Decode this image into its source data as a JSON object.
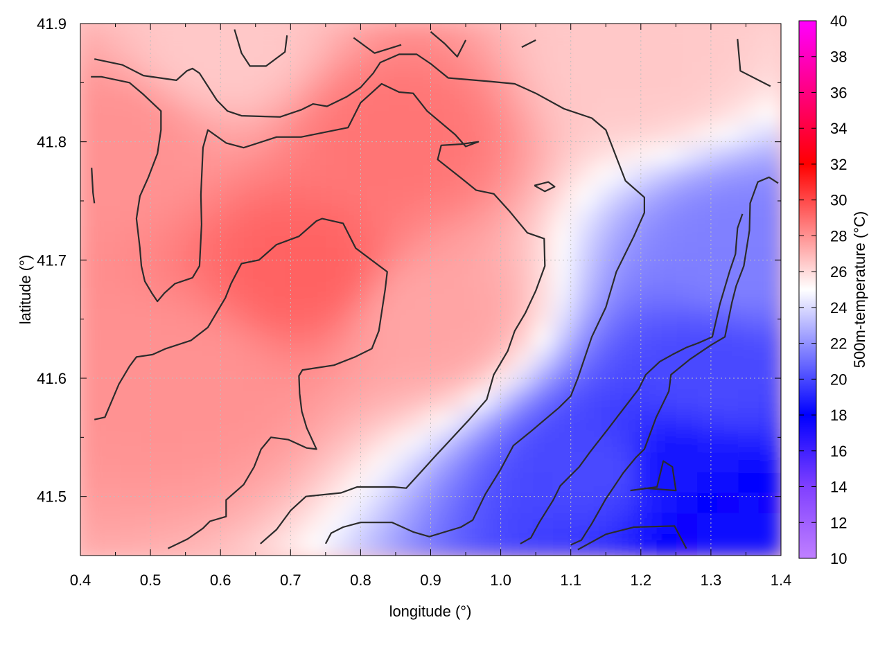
{
  "chart_data": {
    "type": "heatmap",
    "title": "",
    "xlabel": "longitude (°)",
    "ylabel": "latitude (°)",
    "colorbar_label": "500m-temperature (°C)",
    "xlim": [
      0.4,
      1.4
    ],
    "ylim": [
      41.45,
      41.9
    ],
    "x_ticks": [
      0.4,
      0.5,
      0.6,
      0.7,
      0.8,
      0.9,
      1.0,
      1.1,
      1.2,
      1.3,
      1.4
    ],
    "x_tick_labels": [
      "0.4",
      "0.5",
      "0.6",
      "0.7",
      "0.8",
      "0.9",
      "1.0",
      "1.1",
      "1.2",
      "1.3",
      "1.4"
    ],
    "y_ticks": [
      41.5,
      41.6,
      41.7,
      41.8,
      41.9
    ],
    "y_tick_labels": [
      "41.5",
      "41.6",
      "41.7",
      "41.8",
      "41.9"
    ],
    "colorbar_range": [
      10,
      40
    ],
    "colorbar_ticks": [
      10,
      12,
      14,
      16,
      18,
      20,
      22,
      24,
      26,
      28,
      30,
      32,
      34,
      36,
      38,
      40
    ],
    "colorbar_tick_labels": [
      "10",
      "12",
      "14",
      "16",
      "18",
      "20",
      "22",
      "24",
      "26",
      "28",
      "30",
      "32",
      "34",
      "36",
      "38",
      "40"
    ],
    "colormap": [
      {
        "value": 10,
        "color": "#c080ff"
      },
      {
        "value": 14,
        "color": "#8040ff"
      },
      {
        "value": 18,
        "color": "#0000ff"
      },
      {
        "value": 25,
        "color": "#ffffff"
      },
      {
        "value": 32,
        "color": "#ff0000"
      },
      {
        "value": 40,
        "color": "#ff00ff"
      }
    ],
    "grid": true,
    "field_description_points": [
      {
        "lon": 0.72,
        "lat": 41.69,
        "temp": 29.3
      },
      {
        "lon": 0.85,
        "lat": 41.8,
        "temp": 28.8
      },
      {
        "lon": 0.55,
        "lat": 41.6,
        "temp": 28.0
      },
      {
        "lon": 0.45,
        "lat": 41.8,
        "temp": 28.0
      },
      {
        "lon": 0.9,
        "lat": 41.65,
        "temp": 27.5
      },
      {
        "lon": 1.2,
        "lat": 41.87,
        "temp": 26.5
      },
      {
        "lon": 0.6,
        "lat": 41.88,
        "temp": 26.5
      },
      {
        "lon": 1.33,
        "lat": 41.47,
        "temp": 17.5
      },
      {
        "lon": 1.25,
        "lat": 41.52,
        "temp": 18.5
      },
      {
        "lon": 1.3,
        "lat": 41.6,
        "temp": 20.0
      },
      {
        "lon": 1.35,
        "lat": 41.7,
        "temp": 21.5
      },
      {
        "lon": 1.15,
        "lat": 41.52,
        "temp": 20.0
      }
    ],
    "contours": [
      [
        [
          0.42,
          41.87
        ],
        [
          0.46,
          41.865
        ],
        [
          0.49,
          41.856
        ],
        [
          0.537,
          41.852
        ],
        [
          0.552,
          41.86
        ],
        [
          0.56,
          41.862
        ],
        [
          0.57,
          41.858
        ],
        [
          0.595,
          41.835
        ],
        [
          0.61,
          41.826
        ],
        [
          0.63,
          41.822
        ],
        [
          0.685,
          41.821
        ],
        [
          0.715,
          41.827
        ],
        [
          0.732,
          41.832
        ],
        [
          0.752,
          41.83
        ],
        [
          0.78,
          41.838
        ],
        [
          0.8,
          41.846
        ],
        [
          0.818,
          41.858
        ],
        [
          0.828,
          41.867
        ],
        [
          0.855,
          41.874
        ],
        [
          0.88,
          41.874
        ],
        [
          0.9,
          41.866
        ],
        [
          0.925,
          41.854
        ],
        [
          0.985,
          41.851
        ],
        [
          1.02,
          41.849
        ],
        [
          1.05,
          41.841
        ],
        [
          1.09,
          41.828
        ],
        [
          1.13,
          41.82
        ],
        [
          1.15,
          41.81
        ],
        [
          1.165,
          41.787
        ],
        [
          1.178,
          41.767
        ],
        [
          1.205,
          41.753
        ],
        [
          1.205,
          41.74
        ],
        [
          1.19,
          41.72
        ],
        [
          1.165,
          41.69
        ],
        [
          1.15,
          41.66
        ],
        [
          1.13,
          41.635
        ],
        [
          1.11,
          41.6
        ],
        [
          1.1,
          41.585
        ],
        [
          1.083,
          41.575
        ],
        [
          1.063,
          41.565
        ],
        [
          1.043,
          41.555
        ],
        [
          1.018,
          41.543
        ],
        [
          1.0,
          41.523
        ],
        [
          0.978,
          41.502
        ],
        [
          0.96,
          41.48
        ],
        [
          0.943,
          41.474
        ],
        [
          0.898,
          41.466
        ],
        [
          0.875,
          41.47
        ],
        [
          0.845,
          41.478
        ],
        [
          0.8,
          41.478
        ],
        [
          0.775,
          41.474
        ],
        [
          0.758,
          41.469
        ],
        [
          0.75,
          41.46
        ]
      ],
      [
        [
          0.415,
          41.855
        ],
        [
          0.43,
          41.855
        ],
        [
          0.47,
          41.85
        ],
        [
          0.49,
          41.84
        ],
        [
          0.515,
          41.826
        ],
        [
          0.515,
          41.81
        ],
        [
          0.51,
          41.79
        ],
        [
          0.497,
          41.77
        ],
        [
          0.485,
          41.754
        ],
        [
          0.48,
          41.735
        ],
        [
          0.485,
          41.71
        ],
        [
          0.487,
          41.695
        ],
        [
          0.492,
          41.682
        ],
        [
          0.502,
          41.672
        ],
        [
          0.51,
          41.665
        ],
        [
          0.52,
          41.672
        ],
        [
          0.535,
          41.68
        ],
        [
          0.56,
          41.685
        ],
        [
          0.57,
          41.695
        ],
        [
          0.573,
          41.73
        ],
        [
          0.572,
          41.755
        ],
        [
          0.575,
          41.795
        ],
        [
          0.582,
          41.81
        ],
        [
          0.608,
          41.799
        ],
        [
          0.633,
          41.795
        ],
        [
          0.68,
          41.804
        ],
        [
          0.715,
          41.804
        ],
        [
          0.782,
          41.812
        ],
        [
          0.8,
          41.833
        ],
        [
          0.83,
          41.849
        ],
        [
          0.855,
          41.842
        ],
        [
          0.875,
          41.841
        ],
        [
          0.895,
          41.826
        ],
        [
          0.935,
          41.806
        ],
        [
          0.95,
          41.796
        ],
        [
          0.968,
          41.8
        ],
        [
          0.943,
          41.798
        ],
        [
          0.915,
          41.797
        ],
        [
          0.91,
          41.785
        ],
        [
          0.942,
          41.77
        ],
        [
          0.965,
          41.759
        ],
        [
          0.99,
          41.756
        ],
        [
          1.013,
          41.741
        ],
        [
          1.038,
          41.723
        ],
        [
          1.062,
          41.718
        ],
        [
          1.063,
          41.695
        ],
        [
          1.05,
          41.674
        ],
        [
          1.035,
          41.655
        ],
        [
          1.02,
          41.64
        ],
        [
          1.01,
          41.623
        ],
        [
          0.99,
          41.603
        ],
        [
          0.98,
          41.582
        ],
        [
          0.955,
          41.565
        ],
        [
          0.93,
          41.549
        ],
        [
          0.908,
          41.535
        ],
        [
          0.882,
          41.518
        ],
        [
          0.865,
          41.507
        ],
        [
          0.847,
          41.508
        ],
        [
          0.795,
          41.508
        ],
        [
          0.772,
          41.503
        ],
        [
          0.722,
          41.5
        ],
        [
          0.7,
          41.488
        ],
        [
          0.68,
          41.472
        ],
        [
          0.657,
          41.46
        ]
      ],
      [
        [
          0.42,
          41.565
        ],
        [
          0.435,
          41.567
        ],
        [
          0.455,
          41.595
        ],
        [
          0.47,
          41.61
        ],
        [
          0.48,
          41.618
        ],
        [
          0.503,
          41.62
        ],
        [
          0.522,
          41.625
        ],
        [
          0.558,
          41.632
        ],
        [
          0.582,
          41.643
        ],
        [
          0.607,
          41.668
        ],
        [
          0.615,
          41.68
        ],
        [
          0.63,
          41.697
        ],
        [
          0.655,
          41.7
        ],
        [
          0.68,
          41.713
        ],
        [
          0.712,
          41.72
        ],
        [
          0.737,
          41.733
        ],
        [
          0.745,
          41.735
        ],
        [
          0.775,
          41.731
        ],
        [
          0.793,
          41.71
        ],
        [
          0.838,
          41.69
        ],
        [
          0.835,
          41.675
        ],
        [
          0.826,
          41.64
        ],
        [
          0.816,
          41.625
        ],
        [
          0.792,
          41.618
        ],
        [
          0.762,
          41.611
        ],
        [
          0.717,
          41.607
        ],
        [
          0.712,
          41.602
        ],
        [
          0.713,
          41.587
        ],
        [
          0.716,
          41.572
        ],
        [
          0.723,
          41.558
        ],
        [
          0.737,
          41.54
        ],
        [
          0.723,
          41.541
        ],
        [
          0.697,
          41.548
        ],
        [
          0.672,
          41.55
        ],
        [
          0.658,
          41.54
        ],
        [
          0.648,
          41.525
        ],
        [
          0.633,
          41.51
        ],
        [
          0.608,
          41.497
        ],
        [
          0.608,
          41.483
        ],
        [
          0.585,
          41.479
        ],
        [
          0.575,
          41.473
        ],
        [
          0.553,
          41.464
        ],
        [
          0.525,
          41.456
        ]
      ],
      [
        [
          1.1,
          41.459
        ],
        [
          1.115,
          41.463
        ],
        [
          1.13,
          41.477
        ],
        [
          1.15,
          41.498
        ],
        [
          1.175,
          41.52
        ],
        [
          1.193,
          41.533
        ],
        [
          1.205,
          41.54
        ],
        [
          1.222,
          41.567
        ],
        [
          1.24,
          41.589
        ],
        [
          1.243,
          41.603
        ],
        [
          1.27,
          41.616
        ],
        [
          1.3,
          41.628
        ],
        [
          1.32,
          41.635
        ],
        [
          1.33,
          41.664
        ],
        [
          1.336,
          41.678
        ],
        [
          1.347,
          41.695
        ],
        [
          1.355,
          41.725
        ],
        [
          1.356,
          41.748
        ],
        [
          1.367,
          41.766
        ],
        [
          1.383,
          41.77
        ],
        [
          1.396,
          41.765
        ]
      ],
      [
        [
          1.028,
          41.46
        ],
        [
          1.043,
          41.465
        ],
        [
          1.055,
          41.478
        ],
        [
          1.075,
          41.497
        ],
        [
          1.085,
          41.509
        ],
        [
          1.112,
          41.525
        ],
        [
          1.128,
          41.538
        ],
        [
          1.153,
          41.557
        ],
        [
          1.175,
          41.574
        ],
        [
          1.197,
          41.591
        ],
        [
          1.207,
          41.603
        ],
        [
          1.227,
          41.614
        ],
        [
          1.245,
          41.62
        ],
        [
          1.265,
          41.626
        ],
        [
          1.283,
          41.63
        ],
        [
          1.302,
          41.635
        ],
        [
          1.313,
          41.663
        ],
        [
          1.327,
          41.691
        ],
        [
          1.335,
          41.705
        ],
        [
          1.338,
          41.727
        ],
        [
          1.345,
          41.739
        ]
      ],
      [
        [
          1.185,
          41.505
        ],
        [
          1.223,
          41.508
        ],
        [
          1.232,
          41.53
        ],
        [
          1.245,
          41.525
        ],
        [
          1.25,
          41.505
        ],
        [
          1.205,
          41.507
        ]
      ],
      [
        [
          1.11,
          41.455
        ],
        [
          1.15,
          41.468
        ],
        [
          1.19,
          41.474
        ],
        [
          1.248,
          41.475
        ],
        [
          1.265,
          41.456
        ]
      ],
      [
        [
          0.62,
          41.895
        ],
        [
          0.63,
          41.875
        ],
        [
          0.642,
          41.864
        ],
        [
          0.665,
          41.864
        ],
        [
          0.692,
          41.876
        ],
        [
          0.695,
          41.89
        ]
      ],
      [
        [
          0.79,
          41.888
        ],
        [
          0.82,
          41.875
        ],
        [
          0.858,
          41.882
        ]
      ],
      [
        [
          0.9,
          41.893
        ],
        [
          0.92,
          41.883
        ],
        [
          0.938,
          41.872
        ],
        [
          0.95,
          41.886
        ]
      ],
      [
        [
          1.03,
          41.88
        ],
        [
          1.05,
          41.886
        ]
      ],
      [
        [
          1.338,
          41.887
        ],
        [
          1.342,
          41.86
        ],
        [
          1.385,
          41.847
        ]
      ],
      [
        [
          0.416,
          41.778
        ],
        [
          0.418,
          41.757
        ],
        [
          0.42,
          41.748
        ]
      ],
      [
        [
          1.048,
          41.763
        ],
        [
          1.068,
          41.766
        ],
        [
          1.077,
          41.762
        ],
        [
          1.063,
          41.758
        ],
        [
          1.048,
          41.763
        ]
      ]
    ]
  }
}
